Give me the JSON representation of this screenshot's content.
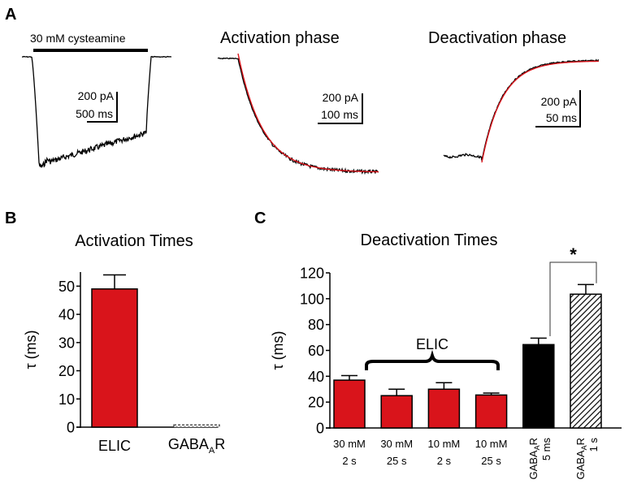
{
  "panels": {
    "A": {
      "letter": "A",
      "trace1": {
        "bar_label": "30 mM cysteamine",
        "scale_current": "200 pA",
        "scale_time": "500 ms"
      },
      "trace2": {
        "title": "Activation phase",
        "scale_current": "200 pA",
        "scale_time": "100 ms"
      },
      "trace3": {
        "title": "Deactivation phase",
        "scale_current": "200 pA",
        "scale_time": "50 ms"
      },
      "colors": {
        "trace": "#000000",
        "fit": "#d9141b"
      }
    },
    "B": {
      "letter": "B"
    },
    "C": {
      "letter": "C",
      "group_label": "ELIC",
      "significance": "*"
    }
  },
  "chart_data": [
    {
      "id": "B",
      "type": "bar",
      "title": "Activation Times",
      "xlabel": "",
      "ylabel": "τ (ms)",
      "ylim": [
        0,
        55
      ],
      "yticks": [
        0,
        10,
        20,
        30,
        40,
        50
      ],
      "grid": false,
      "categories": [
        {
          "line1": "ELIC",
          "line2": ""
        },
        {
          "main": "GABA",
          "sub": "A",
          "tail": "R"
        }
      ],
      "values": [
        49,
        0.8
      ],
      "errors": [
        5,
        0
      ],
      "fills": [
        "#d9141b",
        "#ffffff"
      ]
    },
    {
      "id": "C",
      "type": "bar",
      "title": "Deactivation Times",
      "xlabel": "",
      "ylabel": "τ (ms)",
      "ylim": [
        0,
        120
      ],
      "yticks": [
        0,
        20,
        40,
        60,
        80,
        100,
        120
      ],
      "grid": false,
      "categories": [
        {
          "line1": "30 mM",
          "line2": "2 s"
        },
        {
          "line1": "30 mM",
          "line2": "25 s"
        },
        {
          "line1": "10 mM",
          "line2": "2 s"
        },
        {
          "line1": "10 mM",
          "line2": "25 s"
        },
        {
          "main": "GABA",
          "sub": "A",
          "tail": "R",
          "line2": "5 ms"
        },
        {
          "main": "GABA",
          "sub": "A",
          "tail": "R",
          "line2": "1 s"
        }
      ],
      "values": [
        37,
        25,
        30,
        25.5,
        64.5,
        103.5
      ],
      "errors": [
        3.5,
        5,
        5,
        1.5,
        5,
        7.5
      ],
      "fills": [
        "#d9141b",
        "#d9141b",
        "#d9141b",
        "#d9141b",
        "#000000",
        "hatch"
      ],
      "annotations": [
        {
          "type": "brace",
          "over_categories": [
            0,
            3
          ],
          "label": "ELIC"
        },
        {
          "type": "significance",
          "between": [
            4,
            5
          ],
          "label": "*"
        }
      ]
    }
  ]
}
